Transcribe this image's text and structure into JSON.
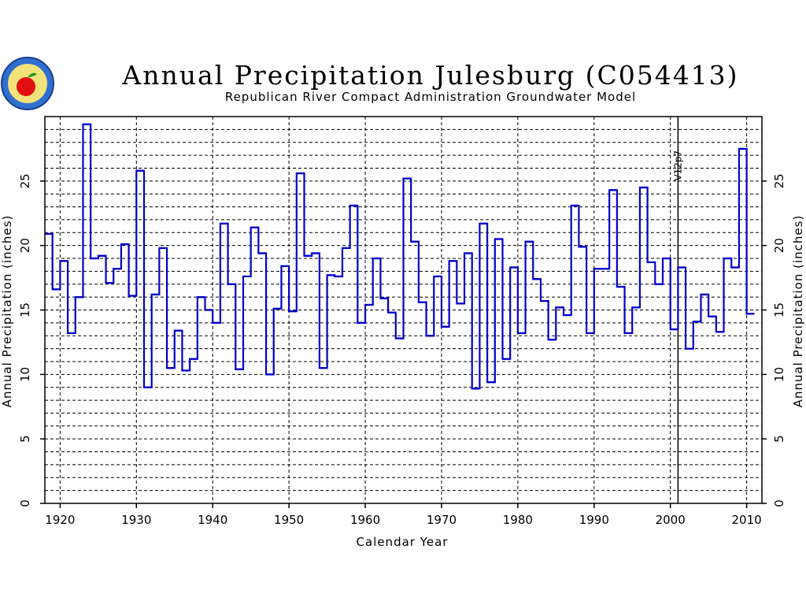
{
  "chart_data": {
    "type": "line",
    "step": true,
    "title": "Annual Precipitation Julesburg (C054413)",
    "subtitle": "Republican River Compact Administration Groundwater Model",
    "xlabel": "Calendar Year",
    "ylabel": "Annual Precipitation (inches)",
    "ylabel_right": "Annual Precipitation (inches)",
    "xlim": [
      1918,
      2012
    ],
    "ylim": [
      0,
      30
    ],
    "x_ticks": [
      1920,
      1930,
      1940,
      1950,
      1960,
      1970,
      1980,
      1990,
      2000,
      2010
    ],
    "y_ticks": [
      0,
      5,
      10,
      15,
      20,
      25
    ],
    "grid": true,
    "annotation": {
      "text": "V12p7",
      "x": 2001
    },
    "series_color": "#0000cc",
    "series": [
      {
        "x": [
          1918,
          1919,
          1920,
          1921,
          1922,
          1923,
          1924,
          1925,
          1926,
          1927,
          1928,
          1929,
          1930,
          1931,
          1932,
          1933,
          1934,
          1935,
          1936,
          1937,
          1938,
          1939,
          1940,
          1941,
          1942,
          1943,
          1944,
          1945,
          1946,
          1947,
          1948,
          1949,
          1950,
          1951,
          1952,
          1953,
          1954,
          1955,
          1956,
          1957,
          1958,
          1959,
          1960,
          1961,
          1962,
          1963,
          1964,
          1965,
          1966,
          1967,
          1968,
          1969,
          1970,
          1971,
          1972,
          1973,
          1974,
          1975,
          1976,
          1977,
          1978,
          1979,
          1980,
          1981,
          1982,
          1983,
          1984,
          1985,
          1986,
          1987,
          1988,
          1989,
          1990,
          1991,
          1992,
          1993,
          1994,
          1995,
          1996,
          1997,
          1998,
          1999,
          2000,
          2001,
          2002,
          2003,
          2004,
          2005,
          2006,
          2007,
          2008,
          2009,
          2010
        ],
        "values": [
          20.9,
          16.6,
          18.8,
          13.2,
          16.0,
          29.4,
          19.0,
          19.2,
          17.1,
          18.2,
          20.1,
          16.1,
          25.8,
          9.0,
          16.2,
          19.8,
          10.5,
          13.4,
          10.3,
          11.2,
          16.0,
          15.0,
          14.0,
          21.7,
          17.0,
          10.4,
          17.6,
          21.4,
          19.4,
          10.0,
          15.1,
          18.4,
          14.9,
          25.6,
          19.2,
          19.4,
          10.5,
          17.7,
          17.6,
          19.8,
          23.1,
          14.0,
          15.4,
          19.0,
          15.9,
          14.8,
          12.8,
          25.2,
          20.3,
          15.6,
          13.0,
          17.6,
          13.7,
          18.8,
          15.5,
          19.4,
          8.9,
          21.7,
          9.4,
          20.5,
          11.2,
          18.3,
          13.2,
          20.3,
          17.4,
          15.7,
          12.7,
          15.2,
          14.6,
          23.1,
          19.9,
          13.2,
          18.2,
          18.2,
          24.3,
          16.8,
          13.2,
          15.2,
          24.5,
          18.7,
          17.0,
          19.0,
          13.5,
          18.3,
          12.0,
          14.1,
          16.2,
          14.5,
          13.3,
          19.0,
          18.3,
          27.5,
          14.7
        ]
      }
    ]
  },
  "logo": {
    "name": "agency-seal",
    "colors": {
      "ring": "#2f6fd0",
      "apple": "#e01010",
      "leaf": "#1a9a1a"
    }
  }
}
